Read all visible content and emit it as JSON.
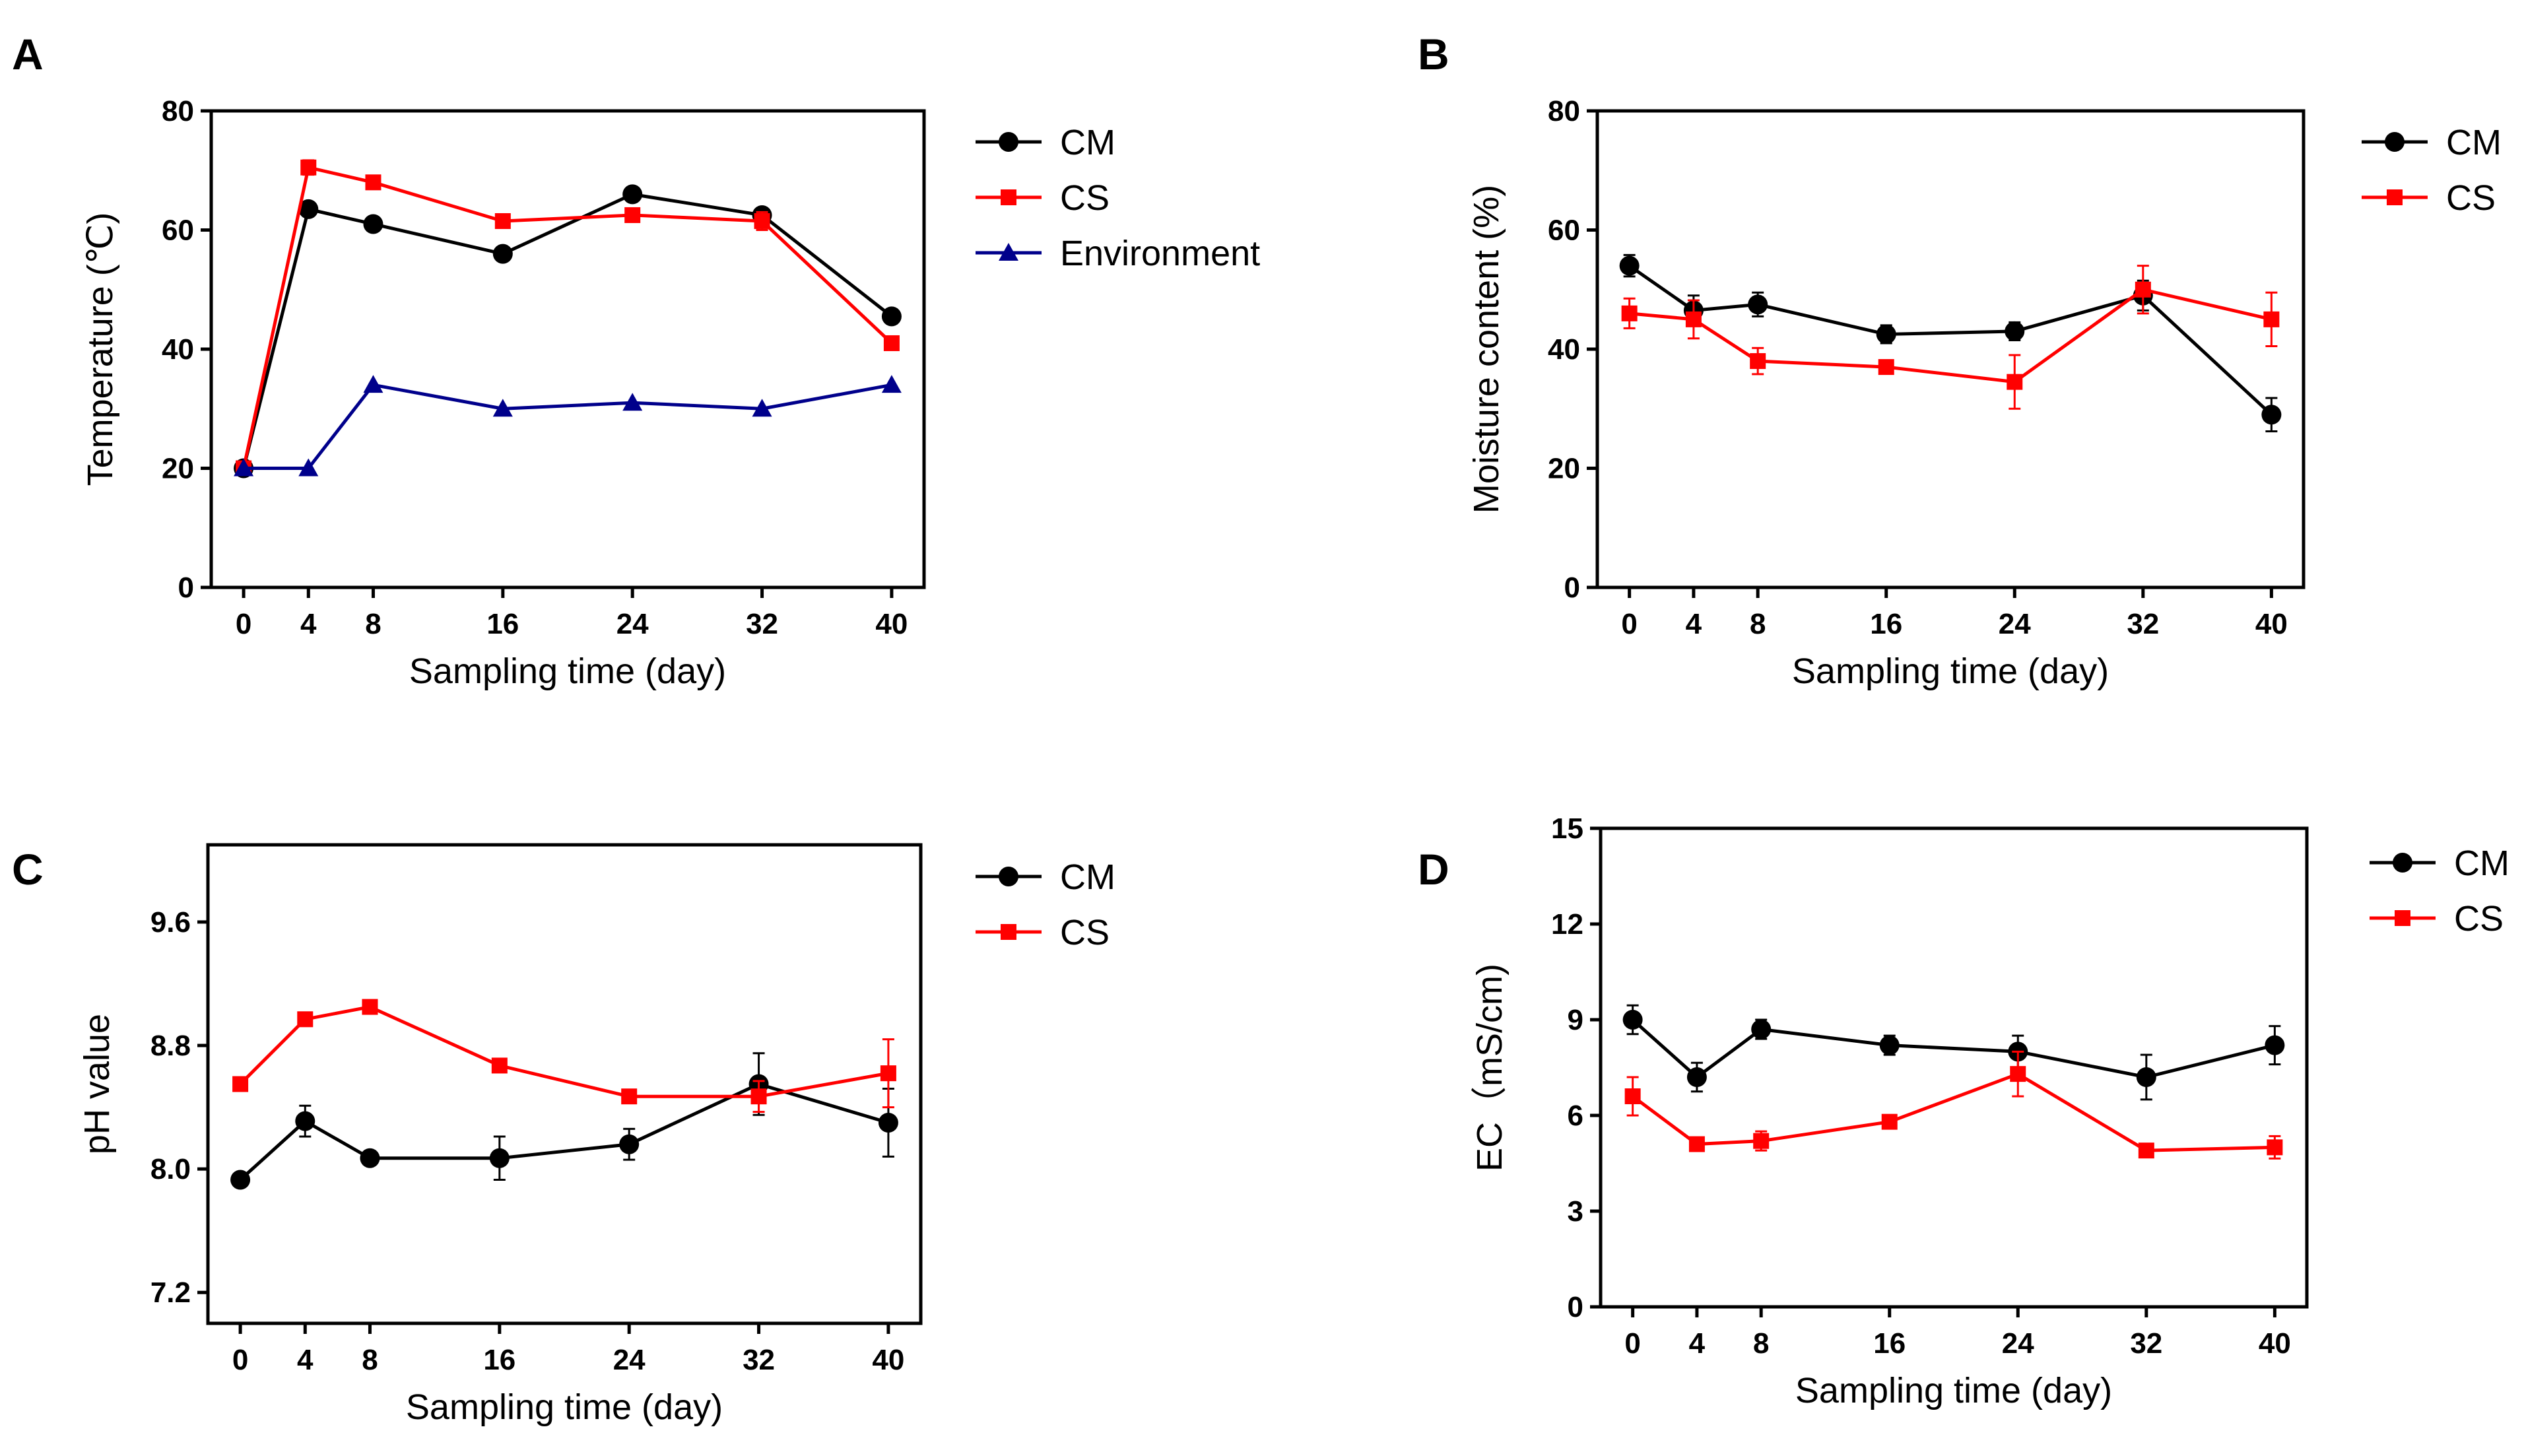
{
  "chart_data": [
    {
      "panel": "A",
      "type": "line",
      "xlabel": "Sampling time (day)",
      "ylabel": "Temperature (℃)",
      "x": [
        0,
        4,
        8,
        16,
        24,
        32,
        40
      ],
      "xticks": [
        "0",
        "4",
        "8",
        "16",
        "24",
        "32",
        "40"
      ],
      "xlim": [
        -2,
        42
      ],
      "ylim": [
        0,
        80
      ],
      "yticks": [
        "0",
        "20",
        "40",
        "60",
        "80"
      ],
      "legend_position": "right",
      "series": [
        {
          "name": "CM",
          "marker": "circle",
          "color": "#000000",
          "values": [
            20,
            63.5,
            61,
            56,
            66,
            62.5,
            45.5
          ],
          "errors": [
            0,
            0,
            0,
            0,
            0,
            0,
            0
          ]
        },
        {
          "name": "CS",
          "marker": "square",
          "color": "#ff0000",
          "values": [
            20,
            70.5,
            68,
            61.5,
            62.5,
            61.5,
            41
          ],
          "errors": [
            0,
            1.2,
            0,
            0,
            0,
            1.5,
            0
          ]
        },
        {
          "name": "Environment",
          "marker": "triangle",
          "color": "#00008b",
          "values": [
            20,
            20,
            34,
            30,
            31,
            30,
            34
          ],
          "errors": [
            0,
            0,
            0,
            0,
            0,
            0,
            0
          ]
        }
      ]
    },
    {
      "panel": "B",
      "type": "line",
      "xlabel": "Sampling time (day)",
      "ylabel": "Moisture content (%)",
      "x": [
        0,
        4,
        8,
        16,
        24,
        32,
        40
      ],
      "xticks": [
        "0",
        "4",
        "8",
        "16",
        "24",
        "32",
        "40"
      ],
      "xlim": [
        -2,
        42
      ],
      "ylim": [
        0,
        80
      ],
      "yticks": [
        "0",
        "20",
        "40",
        "60",
        "80"
      ],
      "legend_position": "right",
      "series": [
        {
          "name": "CM",
          "marker": "circle",
          "color": "#000000",
          "values": [
            54,
            46.5,
            47.5,
            42.5,
            43,
            49,
            29
          ],
          "errors": [
            1.8,
            2.5,
            2.0,
            1.5,
            1.5,
            2.5,
            2.8
          ]
        },
        {
          "name": "CS",
          "marker": "square",
          "color": "#ff0000",
          "values": [
            46,
            45,
            38,
            37,
            34.5,
            50,
            45
          ],
          "errors": [
            2.5,
            3.2,
            2.2,
            1.0,
            4.5,
            4.0,
            4.5
          ]
        }
      ]
    },
    {
      "panel": "C",
      "type": "line",
      "xlabel": "Sampling time (day)",
      "ylabel": "pH value",
      "x": [
        0,
        4,
        8,
        16,
        24,
        32,
        40
      ],
      "xticks": [
        "0",
        "4",
        "8",
        "16",
        "24",
        "32",
        "40"
      ],
      "xlim": [
        -2,
        42
      ],
      "ylim": [
        7.0,
        10.1
      ],
      "yticks": [
        "7.2",
        "8.0",
        "8.8",
        "9.6"
      ],
      "legend_position": "right",
      "series": [
        {
          "name": "CM",
          "marker": "circle",
          "color": "#000000",
          "values": [
            7.93,
            8.31,
            8.07,
            8.07,
            8.16,
            8.55,
            8.3
          ],
          "errors": [
            0,
            0.1,
            0,
            0.14,
            0.1,
            0.2,
            0.22
          ]
        },
        {
          "name": "CS",
          "marker": "square",
          "color": "#ff0000",
          "values": [
            8.55,
            8.97,
            9.05,
            8.67,
            8.47,
            8.47,
            8.62
          ],
          "errors": [
            0,
            0,
            0,
            0,
            0,
            0.1,
            0.22
          ]
        }
      ]
    },
    {
      "panel": "D",
      "type": "line",
      "xlabel": "Sampling time (day)",
      "ylabel": "EC（mS/cm)",
      "x": [
        0,
        4,
        8,
        16,
        24,
        32,
        40
      ],
      "xticks": [
        "0",
        "4",
        "8",
        "16",
        "24",
        "32",
        "40"
      ],
      "xlim": [
        -2,
        42
      ],
      "ylim": [
        0,
        15
      ],
      "yticks": [
        "0",
        "3",
        "6",
        "9",
        "12",
        "15"
      ],
      "legend_position": "right",
      "series": [
        {
          "name": "CM",
          "marker": "circle",
          "color": "#000000",
          "values": [
            9.0,
            7.2,
            8.7,
            8.2,
            8.0,
            7.2,
            8.2
          ],
          "errors": [
            0.45,
            0.45,
            0.3,
            0.3,
            0.5,
            0.7,
            0.6
          ]
        },
        {
          "name": "CS",
          "marker": "square",
          "color": "#ff0000",
          "values": [
            6.6,
            5.1,
            5.2,
            5.8,
            7.3,
            4.9,
            5.0
          ],
          "errors": [
            0.6,
            0.15,
            0.3,
            0.15,
            0.7,
            0.1,
            0.35
          ]
        }
      ]
    }
  ]
}
